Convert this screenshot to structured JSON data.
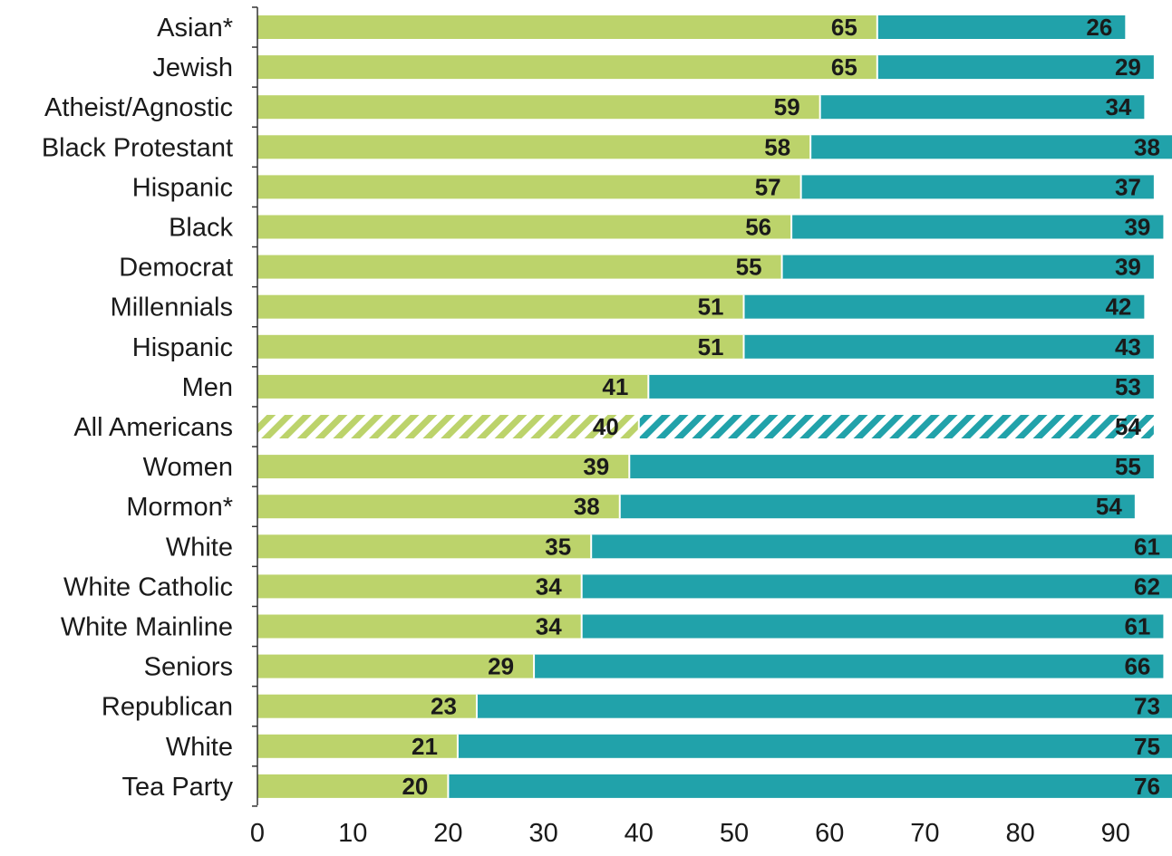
{
  "chart_data": {
    "type": "bar",
    "orientation": "horizontal",
    "stacked": true,
    "categories": [
      "Asian*",
      "Jewish",
      "Atheist/Agnostic",
      "Black Protestant",
      "Hispanic",
      "Black",
      "Democrat",
      "Millennials",
      "Hispanic",
      "Men",
      "All Americans",
      "Women",
      "Mormon*",
      "White",
      "White Catholic",
      "White Mainline",
      "Seniors",
      "Republican",
      "White",
      "Tea Party"
    ],
    "series": [
      {
        "color": "#bcd36b",
        "values": [
          65,
          65,
          59,
          58,
          57,
          56,
          55,
          51,
          51,
          41,
          40,
          39,
          38,
          35,
          34,
          34,
          29,
          23,
          21,
          20
        ]
      },
      {
        "color": "#21a2aa",
        "values": [
          26,
          29,
          34,
          38,
          37,
          39,
          39,
          42,
          43,
          53,
          54,
          55,
          54,
          61,
          62,
          61,
          66,
          73,
          75,
          76
        ]
      }
    ],
    "highlight_category_index": 10,
    "highlight_style": "hatched",
    "xlim": [
      0,
      95.8
    ],
    "x_ticks": [
      0,
      10,
      20,
      30,
      40,
      50,
      60,
      70,
      80,
      90
    ],
    "grid": false,
    "legend": "none",
    "title": "",
    "xlabel": "",
    "ylabel": ""
  }
}
